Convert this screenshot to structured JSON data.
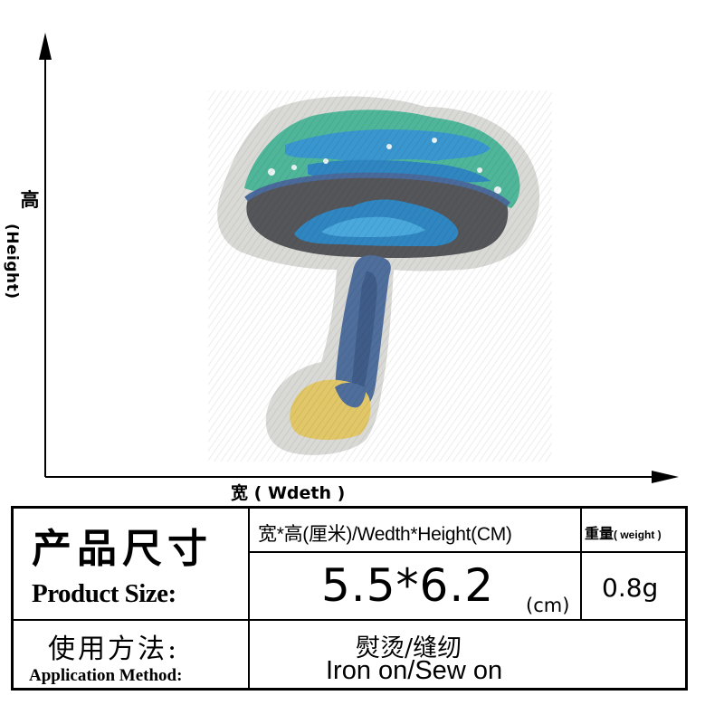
{
  "axes": {
    "height_cn": "高",
    "height_en": "(Height)",
    "width_cn": "宽",
    "width_en": "( Wdeth )"
  },
  "table": {
    "title_cn": "产品尺寸",
    "title_en": "Product Size:",
    "dim_header": "宽*高(厘米)/Wedth*Height(CM)",
    "weight_header_cn": "重量",
    "weight_header_en": "( weight )",
    "dim_value": "5.5*6.2",
    "dim_unit": "(cm)",
    "weight_value": "0.8g",
    "app_cn": "使用方法:",
    "app_en": "Application Method:",
    "method_cn": "熨烫/缝纫",
    "method_en": "Iron on/Sew on"
  },
  "patch": {
    "subject": "mushroom-embroidered-patch",
    "colors": {
      "border": "#d9d9d6",
      "cap_green": "#4fb69a",
      "cap_blue": "#3a96cf",
      "gill_gray": "#55565a",
      "stem_blue": "#4f6e9c",
      "base_yellow": "#e1c767"
    }
  }
}
